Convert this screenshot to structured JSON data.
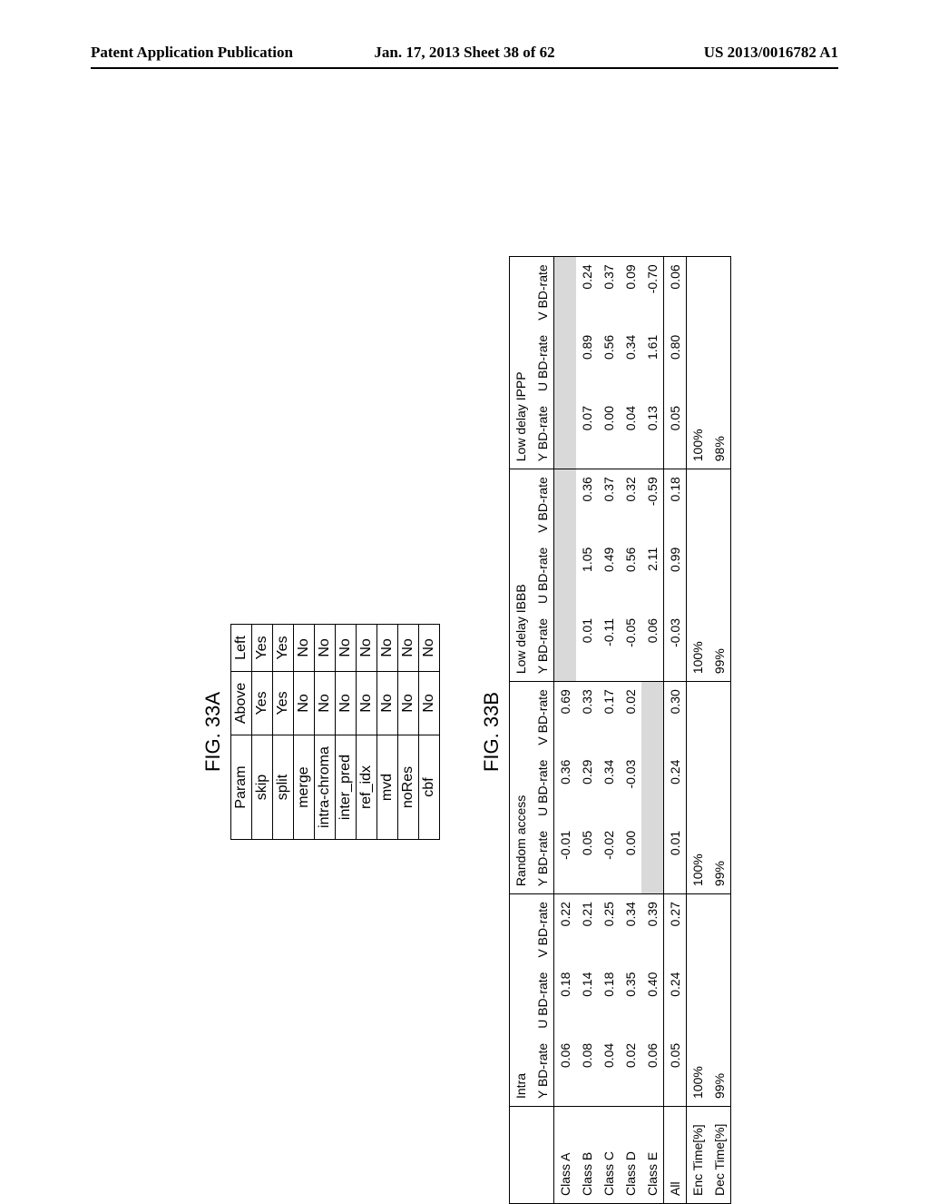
{
  "header": {
    "left": "Patent Application Publication",
    "mid": "Jan. 17, 2013  Sheet 38 of 62",
    "right": "US 2013/0016782 A1"
  },
  "figA": {
    "label": "FIG. 33A",
    "columns": [
      "Param",
      "Above",
      "Left"
    ],
    "rows": [
      [
        "skip",
        "Yes",
        "Yes"
      ],
      [
        "split",
        "Yes",
        "Yes"
      ],
      [
        "merge",
        "No",
        "No"
      ],
      [
        "intra-chroma",
        "No",
        "No"
      ],
      [
        "inter_pred",
        "No",
        "No"
      ],
      [
        "ref_idx",
        "No",
        "No"
      ],
      [
        "mvd",
        "No",
        "No"
      ],
      [
        "noRes",
        "No",
        "No"
      ],
      [
        "cbf",
        "No",
        "No"
      ]
    ]
  },
  "figB": {
    "label": "FIG. 33B",
    "group_labels": [
      "Intra",
      "Random access",
      "Low delay IBBB",
      "Low delay IPPP"
    ],
    "col_labels": [
      "Y BD-rate",
      "U BD-rate",
      "V BD-rate"
    ],
    "rows": [
      {
        "label": "Class A",
        "intra": [
          "0.06",
          "0.18",
          "0.22"
        ],
        "ra": [
          "-0.01",
          "0.36",
          "0.69"
        ],
        "ld_ibbb": [
          "",
          "",
          ""
        ],
        "ld_ippp": [
          "",
          "",
          ""
        ],
        "grey_ibbb": true,
        "grey_ippp": true
      },
      {
        "label": "Class B",
        "intra": [
          "0.08",
          "0.14",
          "0.21"
        ],
        "ra": [
          "0.05",
          "0.29",
          "0.33"
        ],
        "ld_ibbb": [
          "0.01",
          "1.05",
          "0.36"
        ],
        "ld_ippp": [
          "0.07",
          "0.89",
          "0.24"
        ]
      },
      {
        "label": "Class C",
        "intra": [
          "0.04",
          "0.18",
          "0.25"
        ],
        "ra": [
          "-0.02",
          "0.34",
          "0.17"
        ],
        "ld_ibbb": [
          "-0.11",
          "0.49",
          "0.37"
        ],
        "ld_ippp": [
          "0.00",
          "0.56",
          "0.37"
        ]
      },
      {
        "label": "Class D",
        "intra": [
          "0.02",
          "0.35",
          "0.34"
        ],
        "ra": [
          "0.00",
          "-0.03",
          "0.02"
        ],
        "ld_ibbb": [
          "-0.05",
          "0.56",
          "0.32"
        ],
        "ld_ippp": [
          "0.04",
          "0.34",
          "0.09"
        ]
      },
      {
        "label": "Class E",
        "intra": [
          "0.06",
          "0.40",
          "0.39"
        ],
        "ra": [
          "",
          "",
          ""
        ],
        "ld_ibbb": [
          "0.06",
          "2.11",
          "-0.59"
        ],
        "ld_ippp": [
          "0.13",
          "1.61",
          "-0.70"
        ],
        "grey_ra": true
      }
    ],
    "all": {
      "label": "All",
      "intra": [
        "0.05",
        "0.24",
        "0.27"
      ],
      "ra": [
        "0.01",
        "0.24",
        "0.30"
      ],
      "ld_ibbb": [
        "-0.03",
        "0.99",
        "0.18"
      ],
      "ld_ippp": [
        "0.05",
        "0.80",
        "0.06"
      ]
    },
    "enc": {
      "label": "Enc Time[%]",
      "vals": [
        "100%",
        "100%",
        "100%",
        "100%"
      ]
    },
    "dec": {
      "label": "Dec Time[%]",
      "vals": [
        "99%",
        "99%",
        "99%",
        "98%"
      ]
    }
  }
}
